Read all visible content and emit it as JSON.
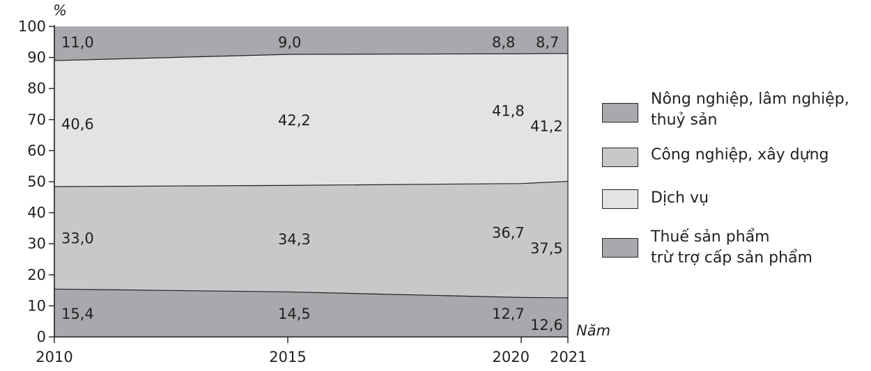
{
  "chart_data": {
    "type": "area",
    "y_unit": "%",
    "x_unit": "Năm",
    "x": [
      "2010",
      "2015",
      "2020",
      "2021"
    ],
    "ylim": [
      0,
      100
    ],
    "yticks": [
      "0",
      "10",
      "20",
      "30",
      "40",
      "50",
      "60",
      "70",
      "80",
      "90",
      "100"
    ],
    "series": [
      {
        "name": "Nông nghiệp, lâm nghiệp, thuỷ sản",
        "values": [
          15.4,
          14.5,
          12.7,
          12.6
        ],
        "labels": [
          "15,4",
          "14,5",
          "12,7",
          "12,6"
        ],
        "color": "#a7a9ac"
      },
      {
        "name": "Công nghiệp, xây dựng",
        "values": [
          33.0,
          34.3,
          36.7,
          37.5
        ],
        "labels": [
          "33,0",
          "34,3",
          "36,7",
          "37,5"
        ],
        "color": "#c7c8ca"
      },
      {
        "name": "Dịch vụ",
        "values": [
          40.6,
          42.2,
          41.8,
          41.2
        ],
        "labels": [
          "40,6",
          "42,2",
          "41,8",
          "41,2"
        ],
        "color": "#e2e3e4"
      },
      {
        "name": "Thuế sản phẩm trừ trợ cấp sản phẩm",
        "values": [
          11.0,
          9.0,
          8.8,
          8.7
        ],
        "labels": [
          "11,0",
          "9,0",
          "8,8",
          "8,7"
        ],
        "color": "#a7a9ac"
      }
    ]
  },
  "legend": [
    {
      "line1": "Nông nghiệp, lâm nghiệp,",
      "line2": "thuỷ sản"
    },
    {
      "line1": "Công nghiệp, xây dựng",
      "line2": ""
    },
    {
      "line1": "Dịch vụ",
      "line2": ""
    },
    {
      "line1": "Thuế sản phẩm",
      "line2": "trừ trợ cấp sản phẩm"
    }
  ]
}
